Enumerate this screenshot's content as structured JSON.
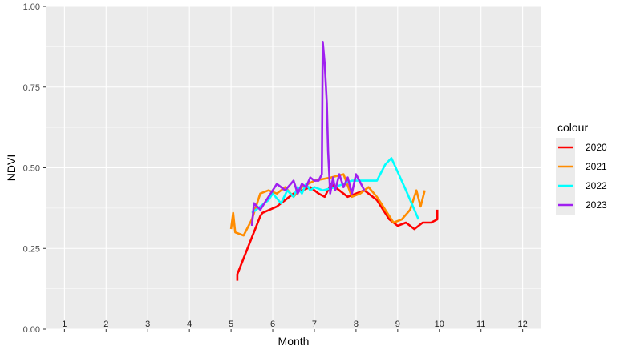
{
  "chart_data": {
    "type": "line",
    "xlabel": "Month",
    "ylabel": "NDVI",
    "xlim": [
      0.55,
      12.45
    ],
    "ylim": [
      0,
      1
    ],
    "x_ticks": [
      1,
      2,
      3,
      4,
      5,
      6,
      7,
      8,
      9,
      10,
      11,
      12
    ],
    "x_tick_labels": [
      "1",
      "2",
      "3",
      "4",
      "5",
      "6",
      "7",
      "8",
      "9",
      "10",
      "11",
      "12"
    ],
    "y_ticks": [
      0,
      0.25,
      0.5,
      0.75,
      1
    ],
    "y_tick_labels": [
      "0.00",
      "0.25",
      "0.50",
      "0.75",
      "1.00"
    ],
    "grid": true,
    "background": "#EBEBEB",
    "legend": {
      "title": "colour",
      "position": "right"
    },
    "series": [
      {
        "name": "2020",
        "color": "#FF0000",
        "x": [
          5.15,
          5.15,
          5.7,
          5.75,
          6.1,
          6.3,
          6.5,
          6.7,
          6.9,
          7.1,
          7.25,
          7.4,
          7.6,
          7.8,
          8.0,
          8.2,
          8.5,
          8.8,
          9.0,
          9.2,
          9.4,
          9.6,
          9.8,
          9.95,
          9.95
        ],
        "y": [
          0.15,
          0.17,
          0.35,
          0.36,
          0.38,
          0.4,
          0.42,
          0.43,
          0.44,
          0.42,
          0.41,
          0.45,
          0.43,
          0.41,
          0.42,
          0.43,
          0.4,
          0.34,
          0.32,
          0.33,
          0.31,
          0.33,
          0.33,
          0.34,
          0.37
        ]
      },
      {
        "name": "2021",
        "color": "#FF8C00",
        "x": [
          5.0,
          5.05,
          5.1,
          5.3,
          5.5,
          5.7,
          5.9,
          6.1,
          6.3,
          6.5,
          6.7,
          7.0,
          7.4,
          7.7,
          7.9,
          8.1,
          8.3,
          8.5,
          8.7,
          8.9,
          9.1,
          9.3,
          9.45,
          9.55,
          9.65
        ],
        "y": [
          0.31,
          0.36,
          0.3,
          0.29,
          0.34,
          0.42,
          0.43,
          0.42,
          0.44,
          0.41,
          0.44,
          0.46,
          0.47,
          0.48,
          0.41,
          0.42,
          0.44,
          0.41,
          0.37,
          0.33,
          0.34,
          0.37,
          0.43,
          0.38,
          0.43
        ]
      },
      {
        "name": "2022",
        "color": "#00FFFF",
        "x": [
          5.5,
          5.7,
          5.9,
          6.0,
          6.2,
          6.35,
          6.5,
          6.6,
          6.7,
          6.8,
          6.9,
          7.0,
          7.2,
          7.5,
          7.7,
          7.9,
          8.2,
          8.5,
          8.7,
          8.85,
          9.2,
          9.5
        ],
        "y": [
          0.36,
          0.38,
          0.4,
          0.42,
          0.39,
          0.43,
          0.41,
          0.44,
          0.42,
          0.45,
          0.43,
          0.44,
          0.43,
          0.44,
          0.45,
          0.46,
          0.46,
          0.46,
          0.51,
          0.53,
          0.43,
          0.34
        ]
      },
      {
        "name": "2023",
        "color": "#A020F0",
        "x": [
          5.5,
          5.55,
          5.7,
          5.9,
          6.1,
          6.3,
          6.5,
          6.6,
          6.7,
          6.8,
          6.9,
          7.0,
          7.1,
          7.18,
          7.2,
          7.25,
          7.3,
          7.33,
          7.38,
          7.45,
          7.5,
          7.6,
          7.7,
          7.8,
          7.9,
          8.0,
          8.2
        ],
        "y": [
          0.32,
          0.39,
          0.37,
          0.41,
          0.45,
          0.43,
          0.46,
          0.42,
          0.45,
          0.44,
          0.47,
          0.46,
          0.46,
          0.48,
          0.89,
          0.82,
          0.7,
          0.55,
          0.42,
          0.47,
          0.43,
          0.48,
          0.44,
          0.47,
          0.42,
          0.48,
          0.43
        ]
      }
    ]
  }
}
